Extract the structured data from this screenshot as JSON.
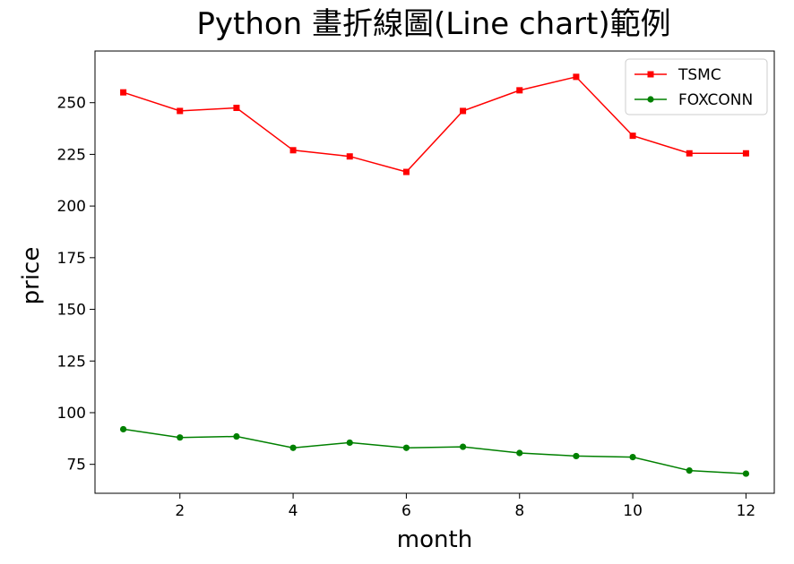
{
  "chart_data": {
    "type": "line",
    "title": "Python 畫折線圖(Line chart)範例",
    "xlabel": "month",
    "ylabel": "price",
    "x": [
      1,
      2,
      3,
      4,
      5,
      6,
      7,
      8,
      9,
      10,
      11,
      12
    ],
    "xlim": [
      0.5,
      12.5
    ],
    "ylim": [
      61,
      275
    ],
    "xticks": [
      2,
      4,
      6,
      8,
      10,
      12
    ],
    "yticks": [
      75,
      100,
      125,
      150,
      175,
      200,
      225,
      250
    ],
    "grid": false,
    "legend_position": "top-right",
    "series": [
      {
        "name": "TSMC",
        "color": "#ff0000",
        "marker": "square",
        "values": [
          255,
          246,
          247.5,
          227,
          224,
          216.5,
          246,
          256,
          262.5,
          234,
          225.5,
          225.5
        ]
      },
      {
        "name": "FOXCONN",
        "color": "#008000",
        "marker": "circle",
        "values": [
          92,
          88,
          88.5,
          83,
          85.5,
          83,
          83.5,
          80.5,
          79,
          78.5,
          72,
          70.5
        ]
      }
    ]
  }
}
